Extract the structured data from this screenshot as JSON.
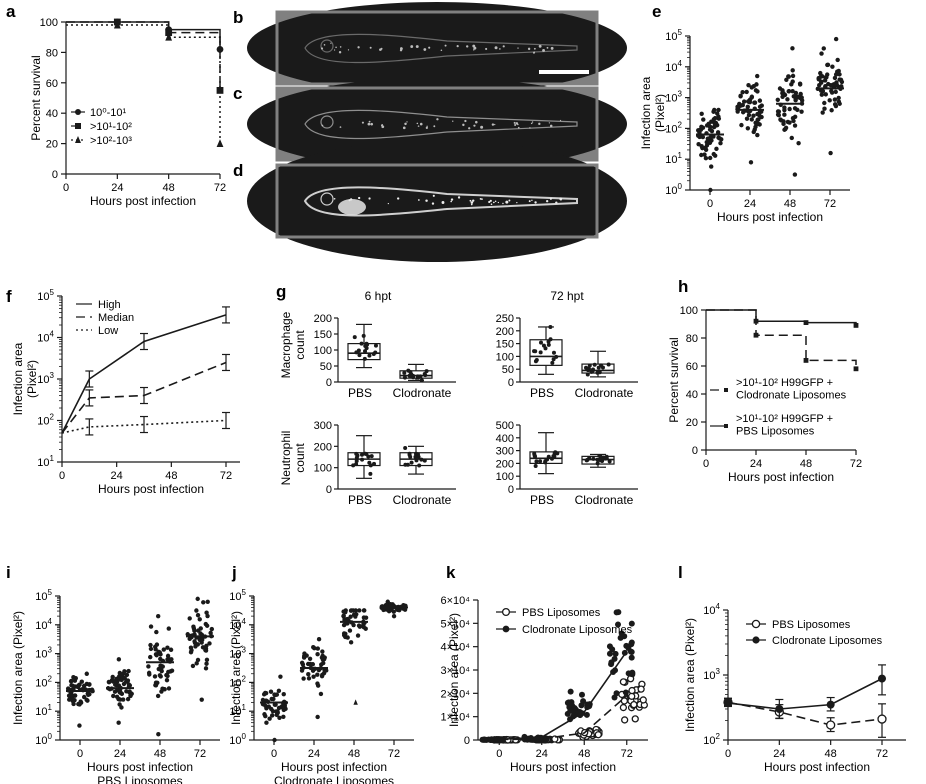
{
  "chart_data": [
    {
      "panel": "a",
      "type": "line",
      "xlabel": "Hours post infection",
      "ylabel": "Percent survival",
      "xticks": [
        "0",
        "24",
        "48",
        "72"
      ],
      "yticks": [
        "0",
        "20",
        "40",
        "60",
        "80",
        "100"
      ],
      "xlim": [
        0,
        72
      ],
      "ylim": [
        0,
        100
      ],
      "legend": {
        "placement": "bottom-left"
      },
      "series": [
        {
          "name": "10⁰-10¹",
          "marker": "circle",
          "dash": "solid",
          "x": [
            0,
            24,
            48,
            72
          ],
          "y": [
            100,
            100,
            95,
            82
          ]
        },
        {
          "name": ">10¹-10²",
          "marker": "square",
          "dash": "long-dash",
          "x": [
            0,
            24,
            48,
            72
          ],
          "y": [
            100,
            100,
            93,
            55
          ]
        },
        {
          "name": ">10²-10³",
          "marker": "triangle",
          "dash": "dotted",
          "x": [
            0,
            24,
            48,
            72
          ],
          "y": [
            98,
            98,
            90,
            20
          ]
        }
      ]
    },
    {
      "panel": "e",
      "type": "scatter",
      "scale": "log",
      "ylabel": "Infection area\n(Pixel²)",
      "xlabel": "Hours post infection",
      "categories": [
        "0",
        "24",
        "48",
        "72"
      ],
      "ylim_exp": [
        0,
        5
      ],
      "medians_log10": [
        1.8,
        2.6,
        2.8,
        3.3
      ],
      "spread_log10": [
        [
          0,
          2.6
        ],
        [
          0.9,
          3.7
        ],
        [
          0.5,
          4.6
        ],
        [
          1.2,
          4.9
        ]
      ]
    },
    {
      "panel": "f",
      "type": "line",
      "scale": "log",
      "xlabel": "Hours post infection",
      "ylabel": "Infection area\n(Pixel²)",
      "xticks": [
        "0",
        "24",
        "48",
        "72"
      ],
      "ylim_exp": [
        1,
        5
      ],
      "legend": {
        "placement": "top-left"
      },
      "series": [
        {
          "name": "High",
          "dash": "solid",
          "x": [
            0,
            12,
            36,
            72
          ],
          "y": [
            50,
            1000,
            8000,
            35000
          ]
        },
        {
          "name": "Median",
          "dash": "long-dash",
          "x": [
            0,
            12,
            36,
            72
          ],
          "y": [
            50,
            350,
            400,
            2500
          ]
        },
        {
          "name": "Low",
          "dash": "dotted",
          "x": [
            0,
            12,
            36,
            72
          ],
          "y": [
            50,
            70,
            80,
            100
          ]
        }
      ]
    },
    {
      "panel": "g",
      "type": "box",
      "titles": [
        "6 hpt",
        "72 hpt"
      ],
      "row_labels": [
        "Macrophage\ncount",
        "Neutrophil\ncount"
      ],
      "categories": [
        "PBS",
        "Clodronate"
      ],
      "boxes": [
        {
          "row": 0,
          "col": 0,
          "ymax": 200,
          "yticks": [
            "0",
            "50",
            "100",
            "150",
            "200"
          ],
          "groups": [
            {
              "min": 45,
              "q1": 70,
              "med": 90,
              "q3": 120,
              "max": 180
            },
            {
              "min": 5,
              "q1": 12,
              "med": 20,
              "q3": 35,
              "max": 55
            }
          ]
        },
        {
          "row": 0,
          "col": 1,
          "ymax": 250,
          "yticks": [
            "0",
            "50",
            "100",
            "150",
            "200",
            "250"
          ],
          "groups": [
            {
              "min": 30,
              "q1": 65,
              "med": 100,
              "q3": 165,
              "max": 215
            },
            {
              "min": 20,
              "q1": 35,
              "med": 45,
              "q3": 70,
              "max": 120
            }
          ]
        },
        {
          "row": 1,
          "col": 0,
          "ymax": 300,
          "yticks": [
            "0",
            "100",
            "200",
            "300"
          ],
          "groups": [
            {
              "min": 50,
              "q1": 110,
              "med": 140,
              "q3": 170,
              "max": 250
            },
            {
              "min": 70,
              "q1": 110,
              "med": 140,
              "q3": 170,
              "max": 200
            }
          ]
        },
        {
          "row": 1,
          "col": 1,
          "ymax": 500,
          "yticks": [
            "0",
            "100",
            "200",
            "300",
            "400",
            "500"
          ],
          "groups": [
            {
              "min": 120,
              "q1": 200,
              "med": 240,
              "q3": 290,
              "max": 440
            },
            {
              "min": 170,
              "q1": 195,
              "med": 230,
              "q3": 255,
              "max": 270
            }
          ]
        }
      ]
    },
    {
      "panel": "h",
      "type": "line",
      "xlabel": "Hours post infection",
      "ylabel": "Percent survival",
      "xticks": [
        "0",
        "24",
        "48",
        "72"
      ],
      "yticks": [
        "0",
        "20",
        "40",
        "60",
        "80",
        "100"
      ],
      "xlim": [
        0,
        72
      ],
      "ylim": [
        0,
        100
      ],
      "series": [
        {
          "name": ">10¹-10² H99GFP +\nClodronate Liposomes",
          "dash": "long-dash",
          "x": [
            0,
            24,
            48,
            72
          ],
          "y": [
            100,
            82,
            64,
            58
          ]
        },
        {
          "name": ">10¹-10² H99GFP +\nPBS Liposomes",
          "dash": "solid",
          "x": [
            0,
            24,
            48,
            72
          ],
          "y": [
            100,
            92,
            91,
            89
          ]
        }
      ]
    },
    {
      "panel": "i",
      "type": "scatter",
      "scale": "log",
      "ylabel": "Infection area (Pixel²)",
      "xlabel": "Hours post infection",
      "subtitle": "PBS Liposomes",
      "categories": [
        "0",
        "24",
        "48",
        "72"
      ],
      "ylim_exp": [
        0,
        5
      ],
      "medians_log10": [
        1.7,
        1.8,
        2.7,
        3.6
      ],
      "spread_log10": [
        [
          0.5,
          2.3
        ],
        [
          0.6,
          2.8
        ],
        [
          0.2,
          4.3
        ],
        [
          1.4,
          4.9
        ]
      ]
    },
    {
      "panel": "j",
      "type": "scatter",
      "scale": "log",
      "ylabel": "Infection area (Pixel²)",
      "xlabel": "Hours post infection",
      "subtitle": "Clodronate Liposomes",
      "categories": [
        "0",
        "24",
        "48",
        "72"
      ],
      "ylim_exp": [
        0,
        5
      ],
      "medians_log10": [
        1.3,
        2.5,
        4.1,
        4.6
      ],
      "spread_log10": [
        [
          0,
          2.2
        ],
        [
          0.8,
          3.5
        ],
        [
          1.3,
          4.5
        ],
        [
          4.3,
          4.8
        ]
      ]
    },
    {
      "panel": "k",
      "type": "scatter",
      "xlabel": "Hours post infection",
      "ylabel": "Infection area (Pixel²)",
      "categories": [
        "0",
        "24",
        "48",
        "72"
      ],
      "yticks": [
        "0",
        "1×10⁴",
        "2×10⁴",
        "3×10⁴",
        "4×10⁴",
        "5×10⁴",
        "6×10⁴"
      ],
      "ylim": [
        0,
        60000
      ],
      "series": [
        {
          "name": "PBS Liposomes",
          "marker": "open-circle",
          "dash": "long-dash",
          "means": [
            200,
            500,
            3000,
            19000
          ]
        },
        {
          "name": "Clodronate Liposomes",
          "marker": "filled-circle",
          "dash": "solid",
          "means": [
            300,
            1200,
            12000,
            38000
          ]
        }
      ]
    },
    {
      "panel": "l",
      "type": "line",
      "scale": "log",
      "xlabel": "Hours post infection",
      "ylabel": "Infection area (Pixel²)",
      "xticks": [
        "0",
        "24",
        "48",
        "72"
      ],
      "ylim_exp": [
        2,
        4
      ],
      "series": [
        {
          "name": "PBS Liposomes",
          "marker": "open-circle",
          "dash": "long-dash",
          "x": [
            0,
            24,
            48,
            72
          ],
          "y": [
            380,
            270,
            170,
            210
          ],
          "err": [
            60,
            80,
            50,
            150
          ]
        },
        {
          "name": "Clodronate Liposomes",
          "marker": "filled-circle",
          "dash": "solid",
          "x": [
            0,
            24,
            48,
            72
          ],
          "y": [
            370,
            300,
            350,
            880
          ],
          "err": [
            60,
            120,
            100,
            550
          ]
        }
      ]
    }
  ],
  "images": {
    "labels": [
      "b",
      "c",
      "d"
    ],
    "scalebar": true
  }
}
